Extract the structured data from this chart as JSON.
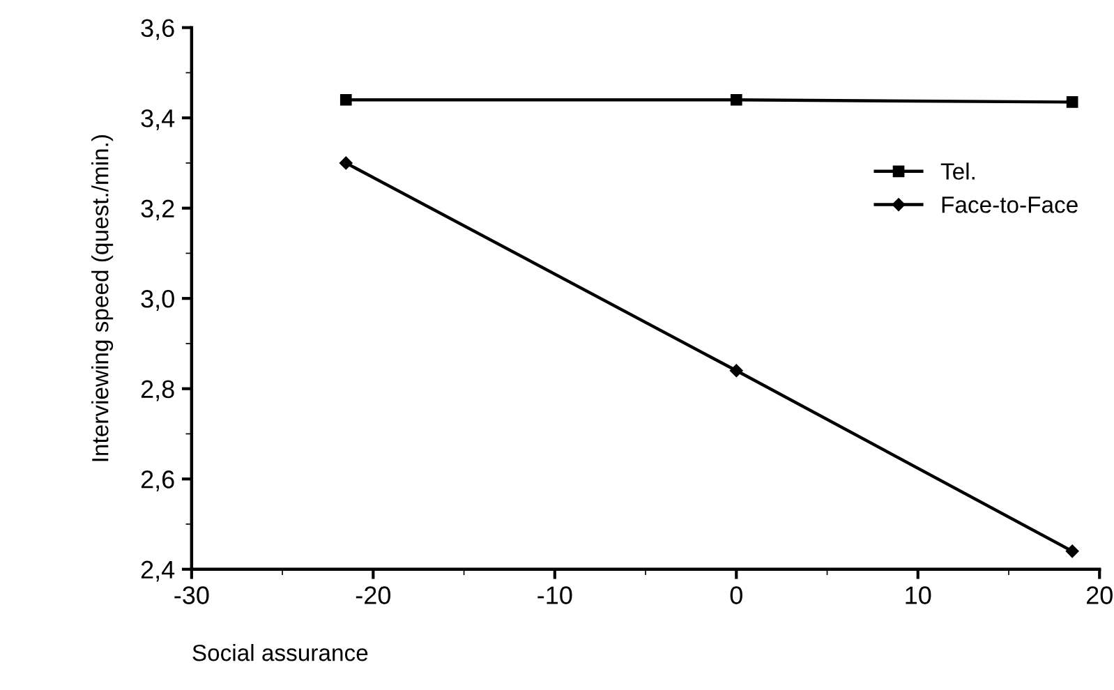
{
  "chart_data": {
    "type": "line",
    "xlabel": "Social assurance",
    "ylabel": "Interviewing speed (quest./min.)",
    "x": [
      -21.5,
      0,
      18.5
    ],
    "series": [
      {
        "name": "Tel.",
        "color": "#000000",
        "marker": "square",
        "values": [
          3.44,
          3.44,
          3.435
        ]
      },
      {
        "name": "Face-to-Face",
        "color": "#000000",
        "marker": "diamond",
        "values": [
          3.3,
          2.84,
          2.44
        ]
      }
    ],
    "xlim": [
      -30,
      20
    ],
    "xticks": [
      -30,
      -20,
      -10,
      0,
      10,
      20
    ],
    "ylim": [
      2.4,
      3.6
    ],
    "yticks": [
      {
        "value": 2.4,
        "label": "2,4"
      },
      {
        "value": 2.6,
        "label": "2,6"
      },
      {
        "value": 2.8,
        "label": "2,8"
      },
      {
        "value": 3.0,
        "label": "3,0"
      },
      {
        "value": 3.2,
        "label": "3,2"
      },
      {
        "value": 3.4,
        "label": "3,4"
      },
      {
        "value": 3.6,
        "label": "3,6"
      }
    ],
    "grid": false,
    "legend": "right",
    "line_style": "solid"
  }
}
